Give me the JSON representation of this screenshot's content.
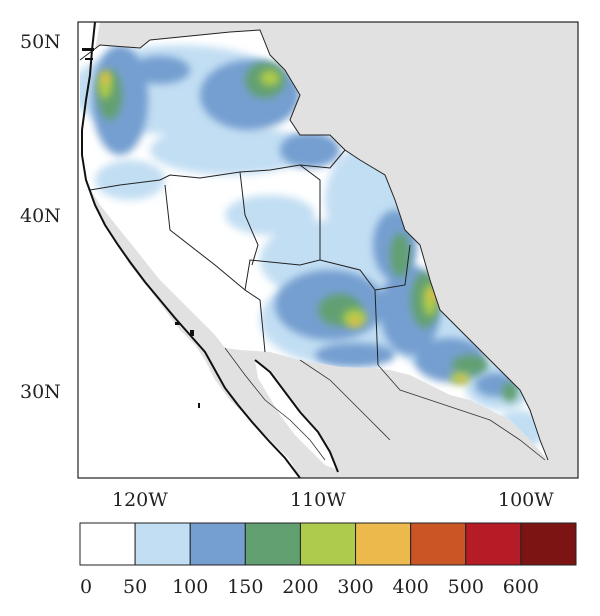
{
  "map": {
    "latitude_labels": [
      "50N",
      "40N",
      "30N"
    ],
    "longitude_labels": [
      "120W",
      "110W",
      "100W"
    ],
    "colors": {
      "land_background": "#e1e1e1",
      "coastline": "#111111",
      "borders": "#222222"
    }
  },
  "colorbar": {
    "boundaries": [
      "0",
      "50",
      "100",
      "150",
      "200",
      "300",
      "400",
      "500",
      "600"
    ],
    "colors": [
      "#ffffff",
      "#c2def3",
      "#759fd0",
      "#62a072",
      "#afcb4c",
      "#ebb94c",
      "#cc5526",
      "#b51c26",
      "#7c1414"
    ]
  }
}
